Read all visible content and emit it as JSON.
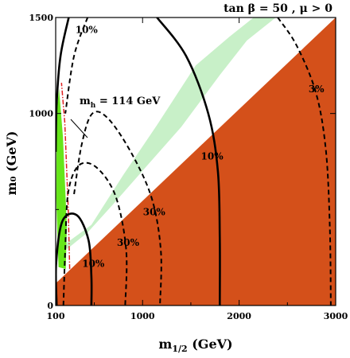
{
  "chart_data": {
    "type": "area",
    "title": "tan β = 50 ,  μ > 0",
    "xlabel_main": "m",
    "xlabel_sub": "1/2",
    "xlabel_unit": " (GeV)",
    "ylabel": "m₀ (GeV)",
    "xlim": [
      100,
      3000
    ],
    "ylim": [
      0,
      1500
    ],
    "xticks": [
      100,
      1000,
      2000,
      3000
    ],
    "yticks": [
      0,
      1000,
      1500
    ],
    "colors": {
      "excluded": "#d4501a",
      "cosmology": "#c8f0c8",
      "g2_band": "#66e61a",
      "mh_line": "#e02020",
      "contour": "#000000"
    },
    "regions": {
      "charged_lsp_excluded": [
        [
          100,
          115
        ],
        [
          3000,
          1500
        ],
        [
          3000,
          0
        ],
        [
          100,
          0
        ]
      ],
      "cosmology_band": [
        [
          170,
          310
        ],
        [
          470,
          420
        ],
        [
          800,
          680
        ],
        [
          1150,
          940
        ],
        [
          1550,
          1250
        ],
        [
          1900,
          1400
        ],
        [
          2150,
          1500
        ],
        [
          2380,
          1500
        ],
        [
          2080,
          1380
        ],
        [
          1800,
          1200
        ],
        [
          1400,
          930
        ],
        [
          1050,
          730
        ],
        [
          700,
          530
        ],
        [
          430,
          380
        ],
        [
          220,
          295
        ]
      ],
      "g2_band": [
        [
          110,
          1000
        ],
        [
          135,
          1130
        ],
        [
          175,
          880
        ],
        [
          215,
          420
        ],
        [
          205,
          190
        ],
        [
          130,
          200
        ],
        [
          105,
          560
        ]
      ]
    },
    "mh_label": "m",
    "mh_label_sub": "h",
    "mh_label_value": " = 114 GeV",
    "mh_line": [
      [
        245,
        190
      ],
      [
        230,
        500
      ],
      [
        195,
        950
      ],
      [
        160,
        1160
      ]
    ],
    "contours": [
      {
        "label": "10%",
        "style": "solid",
        "label_at": [
          420,
          1420
        ],
        "points": [
          [
            235,
            1500
          ],
          [
            150,
            1300
          ],
          [
            110,
            1050
          ],
          [
            100,
            800
          ]
        ]
      },
      {
        "label": "10%",
        "style": "solid",
        "label_at": [
          490,
          200
        ],
        "points": [
          [
            110,
            0
          ],
          [
            105,
            220
          ],
          [
            170,
            440
          ],
          [
            320,
            470
          ],
          [
            440,
            340
          ],
          [
            470,
            150
          ],
          [
            470,
            0
          ]
        ]
      },
      {
        "label": "10%",
        "style": "solid",
        "label_at": [
          1720,
          760
        ],
        "points": [
          [
            1150,
            1500
          ],
          [
            1450,
            1300
          ],
          [
            1680,
            1000
          ],
          [
            1780,
            700
          ],
          [
            1800,
            350
          ],
          [
            1800,
            0
          ]
        ]
      },
      {
        "label": "30%",
        "style": "dashed",
        "label_at": [
          1120,
          470
        ],
        "points": [
          [
            430,
            1500
          ],
          [
            290,
            1300
          ],
          [
            200,
            1000
          ]
        ]
      },
      {
        "label": "30%",
        "style": "dashed",
        "label_at": [
          850,
          310
        ],
        "points": [
          [
            180,
            0
          ],
          [
            200,
            300
          ],
          [
            230,
            590
          ],
          [
            340,
            730
          ],
          [
            520,
            720
          ],
          [
            720,
            570
          ],
          [
            830,
            290
          ],
          [
            820,
            0
          ]
        ]
      },
      {
        "label": "",
        "style": "dashed",
        "label_at": [
          0,
          0
        ],
        "points": [
          [
            290,
            580
          ],
          [
            370,
            840
          ],
          [
            480,
            1000
          ],
          [
            650,
            970
          ],
          [
            900,
            780
          ],
          [
            1100,
            550
          ],
          [
            1190,
            280
          ],
          [
            1180,
            0
          ]
        ]
      },
      {
        "label": "3%",
        "style": "dashed",
        "label_at": [
          2800,
          1110
        ],
        "points": [
          [
            2400,
            1500
          ],
          [
            2600,
            1350
          ],
          [
            2800,
            1100
          ],
          [
            2900,
            800
          ],
          [
            2940,
            400
          ],
          [
            2950,
            0
          ]
        ]
      }
    ]
  }
}
